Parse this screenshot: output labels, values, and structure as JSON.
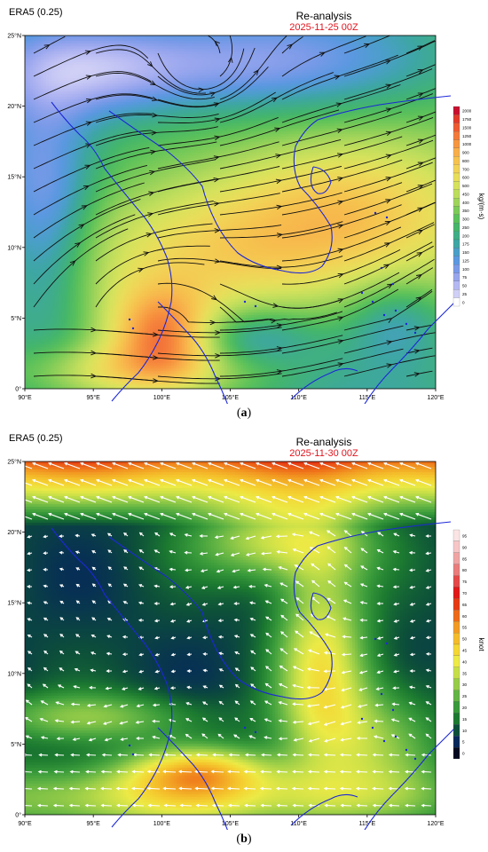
{
  "panels": [
    {
      "source": "ERA5 (0.25)",
      "title": "Re-analysis",
      "datetime": "2025-11-25 00Z",
      "caption_letter": "a",
      "x_ticks": [
        "90°E",
        "95°E",
        "100°E",
        "105°E",
        "110°E",
        "115°E",
        "120°E"
      ],
      "y_ticks": [
        "25°N",
        "20°N",
        "15°N",
        "10°N",
        "5°N",
        "0°"
      ],
      "colorbar": {
        "unit": "kg/(m·s)",
        "labels": [
          "2000",
          "1750",
          "1500",
          "1250",
          "1000",
          "900",
          "800",
          "700",
          "600",
          "500",
          "450",
          "400",
          "350",
          "300",
          "250",
          "200",
          "175",
          "150",
          "125",
          "100",
          "75",
          "50",
          "25",
          "0"
        ],
        "colors": [
          "#c8102e",
          "#e23a2a",
          "#ee5a32",
          "#f47a3a",
          "#f79640",
          "#f8ae4a",
          "#f6c24e",
          "#f2d256",
          "#e8de5a",
          "#d6e25c",
          "#bddd5c",
          "#9fd45a",
          "#7ccb58",
          "#5bc15a",
          "#45b66a",
          "#3fae86",
          "#3ea6a4",
          "#4a9fc8",
          "#5b98e0",
          "#7a9ae8",
          "#98a6ee",
          "#b4b8f2",
          "#d0d0f6",
          "#ffffff"
        ]
      },
      "field_type": "streamlines"
    },
    {
      "source": "ERA5 (0.25)",
      "title": "Re-analysis",
      "datetime": "2025-11-30 00Z",
      "caption_letter": "b",
      "x_ticks": [
        "90°E",
        "95°E",
        "100°E",
        "105°E",
        "110°E",
        "115°E",
        "120°E"
      ],
      "y_ticks": [
        "25°N",
        "20°N",
        "15°N",
        "10°N",
        "5°N",
        "0°"
      ],
      "colorbar": {
        "unit": "knot",
        "labels": [
          "95",
          "90",
          "85",
          "80",
          "75",
          "70",
          "65",
          "60",
          "55",
          "50",
          "45",
          "40",
          "35",
          "30",
          "25",
          "20",
          "15",
          "10",
          "5",
          "0"
        ],
        "colors": [
          "#fbe4e4",
          "#f6c6c6",
          "#f0a4a4",
          "#ea7c7c",
          "#e44848",
          "#e01818",
          "#e63a14",
          "#ee6a18",
          "#f29a22",
          "#f4bc2a",
          "#f4d634",
          "#ecea46",
          "#c6df48",
          "#96cc48",
          "#62b444",
          "#389a3a",
          "#1c7a30",
          "#0c4e3a",
          "#06285a",
          "#020a20"
        ]
      },
      "field_type": "wind-vectors"
    }
  ],
  "caption_open": "(",
  "caption_close": ")"
}
